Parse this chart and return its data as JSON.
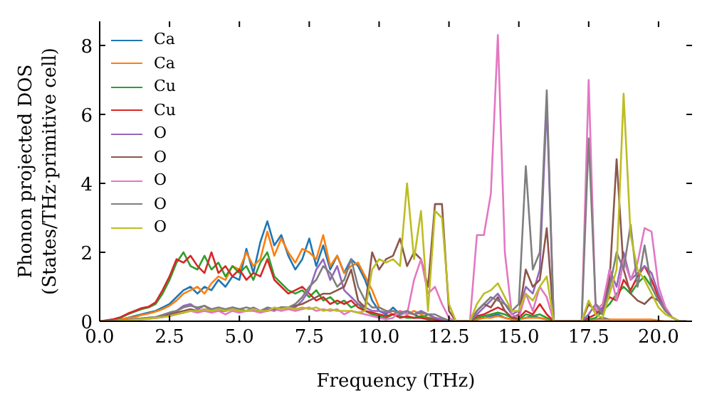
{
  "chart_data": {
    "type": "line",
    "xlabel": "Frequency (THz)",
    "ylabel": "Phonon projected DOS\n(States/THz·primitive cell)",
    "x": [
      0,
      0.25,
      0.5,
      0.75,
      1,
      1.25,
      1.5,
      1.75,
      2,
      2.25,
      2.5,
      2.75,
      3,
      3.25,
      3.5,
      3.75,
      4,
      4.25,
      4.5,
      4.75,
      5,
      5.25,
      5.5,
      5.75,
      6,
      6.25,
      6.5,
      6.75,
      7,
      7.25,
      7.5,
      7.75,
      8,
      8.25,
      8.5,
      8.75,
      9,
      9.25,
      9.5,
      9.75,
      10,
      10.25,
      10.5,
      10.75,
      11,
      11.25,
      11.5,
      11.75,
      12,
      12.25,
      12.5,
      12.75,
      13,
      13.25,
      13.5,
      13.75,
      14,
      14.25,
      14.5,
      14.75,
      15,
      15.25,
      15.5,
      15.75,
      16,
      16.25,
      16.5,
      16.75,
      17,
      17.25,
      17.5,
      17.75,
      18,
      18.25,
      18.5,
      18.75,
      19,
      19.25,
      19.5,
      19.75,
      20,
      20.25,
      20.5,
      20.75,
      21
    ],
    "series": [
      {
        "name": "Ca",
        "color": "#1f77b4",
        "values": [
          null,
          null,
          null,
          0.05,
          0.1,
          0.15,
          0.2,
          0.25,
          0.3,
          0.4,
          0.5,
          0.7,
          0.9,
          1.0,
          0.8,
          1.0,
          0.9,
          1.2,
          1.0,
          1.3,
          1.2,
          2.1,
          1.4,
          2.3,
          2.9,
          2.2,
          2.5,
          1.9,
          1.5,
          1.8,
          2.4,
          1.6,
          2.2,
          1.5,
          1.9,
          1.4,
          1.8,
          1.6,
          1.2,
          0.6,
          0.3,
          0.2,
          0.4,
          0.2,
          0.3,
          0.2,
          0.1,
          0.2,
          0.1,
          0.05,
          0.02,
          0,
          0,
          0,
          0.05,
          0.1,
          0.15,
          0.2,
          0.1,
          0.05,
          0.05,
          0.1,
          0.15,
          0.1,
          0.05,
          0,
          0,
          0,
          0,
          0,
          0.05,
          0.05,
          0.1,
          0.05,
          null,
          null,
          null,
          null,
          null,
          null,
          null,
          null,
          null,
          null,
          null
        ]
      },
      {
        "name": "Ca",
        "color": "#ff7f0e",
        "values": [
          0,
          0,
          0.02,
          0.05,
          0.1,
          0.12,
          0.18,
          0.22,
          0.28,
          0.35,
          0.45,
          0.6,
          0.8,
          0.9,
          1.0,
          0.8,
          1.1,
          1.3,
          1.2,
          1.6,
          1.5,
          2.0,
          1.6,
          1.8,
          2.6,
          1.9,
          2.4,
          2.0,
          1.7,
          2.1,
          2.0,
          1.8,
          2.5,
          1.6,
          1.9,
          1.4,
          1.6,
          1.7,
          1.3,
          0.9,
          0.4,
          0.3,
          0.2,
          0.3,
          0.2,
          0.3,
          0.2,
          0.1,
          0.1,
          0.05,
          0.02,
          0,
          0,
          0,
          0.05,
          0.1,
          0.1,
          0.15,
          0.1,
          0.05,
          0.05,
          0.1,
          0.1,
          0.1,
          0.05,
          0,
          0,
          0,
          0,
          0,
          0.05,
          0.05,
          0.05,
          0.05,
          0.05,
          0.05,
          0.05,
          0.05,
          0.05,
          0.05,
          0.02,
          0,
          0,
          null,
          null
        ]
      },
      {
        "name": "Cu",
        "color": "#2ca02c",
        "values": [
          0,
          0.02,
          0.05,
          0.1,
          0.2,
          0.28,
          0.35,
          0.4,
          0.5,
          0.8,
          1.2,
          1.7,
          2.0,
          1.6,
          1.5,
          1.9,
          1.5,
          1.7,
          1.3,
          1.6,
          1.4,
          1.6,
          1.2,
          1.7,
          2.0,
          1.3,
          1.1,
          0.9,
          0.8,
          0.9,
          0.7,
          0.9,
          0.6,
          0.7,
          0.5,
          0.6,
          0.4,
          0.5,
          0.3,
          0.2,
          0.15,
          0.1,
          0.2,
          0.15,
          0.1,
          0.1,
          0.15,
          0.1,
          0.05,
          0.02,
          0,
          0,
          0,
          0,
          0.1,
          0.15,
          0.2,
          0.25,
          0.2,
          0.1,
          0.05,
          0.2,
          0.15,
          0.2,
          0.1,
          0,
          0,
          0,
          0,
          0,
          0.05,
          0.1,
          0.3,
          0.5,
          0.8,
          1.0,
          0.8,
          1.1,
          1.3,
          1.0,
          0.6,
          0.3,
          null,
          null,
          null
        ]
      },
      {
        "name": "Cu",
        "color": "#d62728",
        "values": [
          0,
          0.03,
          0.06,
          0.12,
          0.22,
          0.3,
          0.38,
          0.42,
          0.55,
          0.9,
          1.3,
          1.8,
          1.7,
          1.9,
          1.6,
          1.4,
          2.0,
          1.4,
          1.6,
          1.3,
          1.5,
          1.2,
          1.4,
          1.3,
          1.8,
          1.2,
          1.0,
          0.8,
          0.9,
          1.0,
          0.8,
          0.6,
          0.7,
          0.5,
          0.6,
          0.5,
          0.6,
          0.4,
          0.3,
          0.25,
          0.2,
          0.15,
          0.2,
          0.1,
          0.15,
          0.1,
          0.1,
          0.05,
          0.05,
          0.02,
          0,
          0,
          0,
          0,
          0.15,
          0.2,
          0.3,
          0.4,
          0.3,
          0.1,
          0.1,
          0.3,
          0.2,
          0.5,
          0.2,
          0,
          0,
          0,
          0,
          0,
          0.1,
          0.2,
          0.4,
          0.7,
          0.6,
          1.2,
          0.9,
          1.3,
          1.6,
          1.2,
          0.7,
          0.3,
          null,
          null,
          null
        ]
      },
      {
        "name": "O",
        "color": "#9467bd",
        "values": [
          null,
          null,
          null,
          0.02,
          0.04,
          0.06,
          0.08,
          0.1,
          0.12,
          0.18,
          0.25,
          0.3,
          0.45,
          0.5,
          0.35,
          0.45,
          0.3,
          0.35,
          0.3,
          0.4,
          0.35,
          0.3,
          0.4,
          0.3,
          0.35,
          0.3,
          0.4,
          0.35,
          0.4,
          0.6,
          0.9,
          1.5,
          1.8,
          1.2,
          1.6,
          0.9,
          0.7,
          0.5,
          0.4,
          0.3,
          0.3,
          0.25,
          0.3,
          0.2,
          0.25,
          0.2,
          0.3,
          0.2,
          0.1,
          0.05,
          0.02,
          0,
          0,
          0,
          0.2,
          0.4,
          0.6,
          0.8,
          0.5,
          0.2,
          0.3,
          1.0,
          0.8,
          1.5,
          6.3,
          0,
          0,
          0,
          0,
          0,
          0.2,
          0.5,
          0.3,
          1.5,
          1.0,
          2.0,
          1.2,
          1.4,
          1.6,
          1.4,
          0.8,
          0.3,
          0.1,
          0,
          0
        ]
      },
      {
        "name": "O",
        "color": "#8c564b",
        "values": [
          0,
          0,
          0.01,
          0.02,
          0.03,
          0.05,
          0.07,
          0.09,
          0.1,
          0.15,
          0.2,
          0.25,
          0.3,
          0.35,
          0.3,
          0.35,
          0.3,
          0.3,
          0.3,
          0.35,
          0.3,
          0.3,
          0.35,
          0.3,
          0.3,
          0.35,
          0.4,
          0.4,
          0.45,
          0.5,
          0.6,
          0.7,
          0.8,
          0.8,
          0.9,
          1.0,
          1.5,
          0.6,
          0.4,
          2.0,
          1.5,
          1.8,
          1.9,
          2.4,
          1.6,
          2.0,
          1.8,
          1.0,
          3.4,
          3.4,
          0.3,
          0,
          0,
          0,
          0.3,
          0.5,
          0.4,
          0.7,
          0.3,
          0.1,
          0.2,
          1.5,
          1.0,
          1.2,
          2.7,
          0,
          0,
          0,
          0,
          0,
          0.5,
          0.3,
          0.2,
          1.2,
          4.7,
          1.5,
          0.8,
          0.6,
          0.5,
          0.7,
          0.6,
          0.3,
          0.1,
          0,
          0
        ]
      },
      {
        "name": "O",
        "color": "#e377c2",
        "values": [
          null,
          null,
          null,
          null,
          null,
          0.04,
          0.05,
          0.07,
          0.09,
          0.12,
          0.15,
          0.2,
          0.25,
          0.3,
          0.25,
          0.3,
          0.25,
          0.3,
          0.2,
          0.3,
          0.25,
          0.3,
          0.3,
          0.25,
          0.3,
          0.35,
          0.3,
          0.35,
          0.3,
          0.35,
          0.4,
          0.3,
          0.35,
          0.3,
          0.35,
          0.2,
          0.3,
          0.25,
          0.2,
          0.15,
          0.1,
          0.05,
          0.1,
          0.3,
          0.2,
          1.2,
          1.8,
          0.8,
          1.0,
          0.5,
          0.1,
          0,
          0,
          0,
          2.5,
          2.5,
          3.7,
          8.3,
          2.0,
          0.2,
          0.1,
          0.8,
          0.3,
          1.0,
          0.7,
          0,
          0,
          0,
          0,
          0,
          7.0,
          0.3,
          0.5,
          1.5,
          0.6,
          1.8,
          1.2,
          1.7,
          2.7,
          2.6,
          1.0,
          0.4,
          0.1,
          0,
          0
        ]
      },
      {
        "name": "O",
        "color": "#7f7f7f",
        "values": [
          0,
          0,
          0.01,
          0.02,
          0.04,
          0.06,
          0.08,
          0.1,
          0.12,
          0.18,
          0.25,
          0.3,
          0.4,
          0.45,
          0.4,
          0.45,
          0.35,
          0.4,
          0.35,
          0.4,
          0.35,
          0.4,
          0.35,
          0.3,
          0.4,
          0.35,
          0.4,
          0.4,
          0.5,
          0.7,
          1.0,
          1.2,
          1.6,
          1.4,
          1.0,
          1.2,
          1.8,
          1.0,
          0.6,
          0.4,
          0.4,
          0.3,
          0.3,
          0.25,
          0.3,
          0.2,
          0.25,
          0.2,
          0.2,
          0.1,
          0.02,
          0,
          0,
          0,
          0.3,
          0.5,
          0.7,
          0.6,
          0.5,
          0.3,
          0.5,
          4.5,
          1.5,
          2.0,
          6.7,
          0,
          0,
          0,
          0,
          0,
          5.3,
          0.5,
          0.2,
          1.0,
          2.0,
          1.5,
          2.8,
          1.0,
          2.2,
          1.0,
          0.6,
          0.3,
          0.1,
          0,
          0
        ]
      },
      {
        "name": "O",
        "color": "#bcbd22",
        "values": [
          0,
          0,
          0,
          0.01,
          0.02,
          0.04,
          0.06,
          0.08,
          0.1,
          0.12,
          0.15,
          0.2,
          0.25,
          0.3,
          0.3,
          0.35,
          0.3,
          0.35,
          0.3,
          0.35,
          0.3,
          0.3,
          0.35,
          0.3,
          0.3,
          0.4,
          0.35,
          0.4,
          0.35,
          0.4,
          0.35,
          0.4,
          0.3,
          0.35,
          0.3,
          0.3,
          0.3,
          0.25,
          0.3,
          1.5,
          1.8,
          1.7,
          1.8,
          1.6,
          4.0,
          1.8,
          3.2,
          0.3,
          3.2,
          3.0,
          0.5,
          0,
          0,
          0,
          0.5,
          0.8,
          0.9,
          1.1,
          0.7,
          0.3,
          0.3,
          0.8,
          0.6,
          1.0,
          1.3,
          0,
          0,
          0,
          0,
          0,
          0.6,
          0.2,
          0.1,
          0.8,
          1.5,
          6.6,
          2.5,
          1.5,
          1.2,
          0.8,
          0.4,
          0.2,
          0.1,
          0,
          0
        ]
      }
    ],
    "xlim": [
      0,
      21.2
    ],
    "xticks": [
      {
        "value": 0,
        "label": "0.0"
      },
      {
        "value": 2.5,
        "label": "2.5"
      },
      {
        "value": 5,
        "label": "5.0"
      },
      {
        "value": 7.5,
        "label": "7.5"
      },
      {
        "value": 10,
        "label": "10.0"
      },
      {
        "value": 12.5,
        "label": "12.5"
      },
      {
        "value": 15,
        "label": "15.0"
      },
      {
        "value": 17.5,
        "label": "17.5"
      },
      {
        "value": 20,
        "label": "20.0"
      }
    ],
    "ylim": [
      0,
      8.7
    ],
    "yticks": [
      0,
      2,
      4,
      6,
      8
    ],
    "legend": "top left",
    "grid": false,
    "marker": "none",
    "line_style": "solid"
  }
}
